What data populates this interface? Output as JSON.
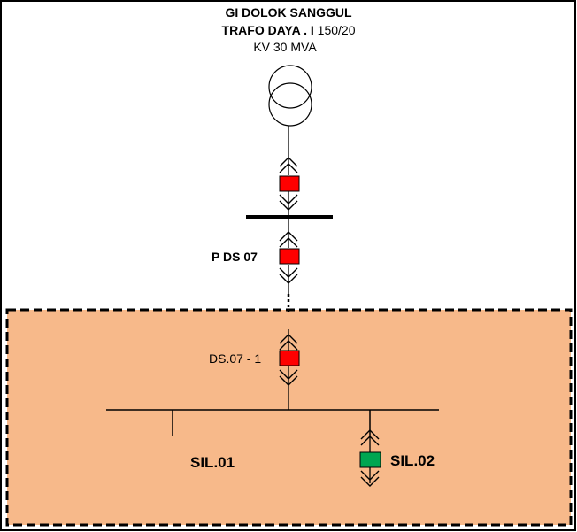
{
  "title": {
    "line1": "GI DOLOK SANGGUL",
    "line2_bold": "TRAFO DAYA . I",
    "line2_normal": "150/20",
    "line3": "KV 30 MVA"
  },
  "labels": {
    "p_ds07": "P DS 07",
    "ds07_1": "DS.07 - 1",
    "sil01": "SIL.01",
    "sil02": "SIL.02"
  },
  "colors": {
    "zone_fill": "#f7b98a",
    "breaker_closed": "#ff0000",
    "breaker_open": "#00a651",
    "line": "#000000"
  },
  "breakers": [
    {
      "id": "trafo-breaker",
      "state": "closed"
    },
    {
      "id": "p-ds07-breaker",
      "state": "closed"
    },
    {
      "id": "ds07-1-breaker",
      "state": "closed"
    },
    {
      "id": "sil02-breaker",
      "state": "open"
    }
  ]
}
